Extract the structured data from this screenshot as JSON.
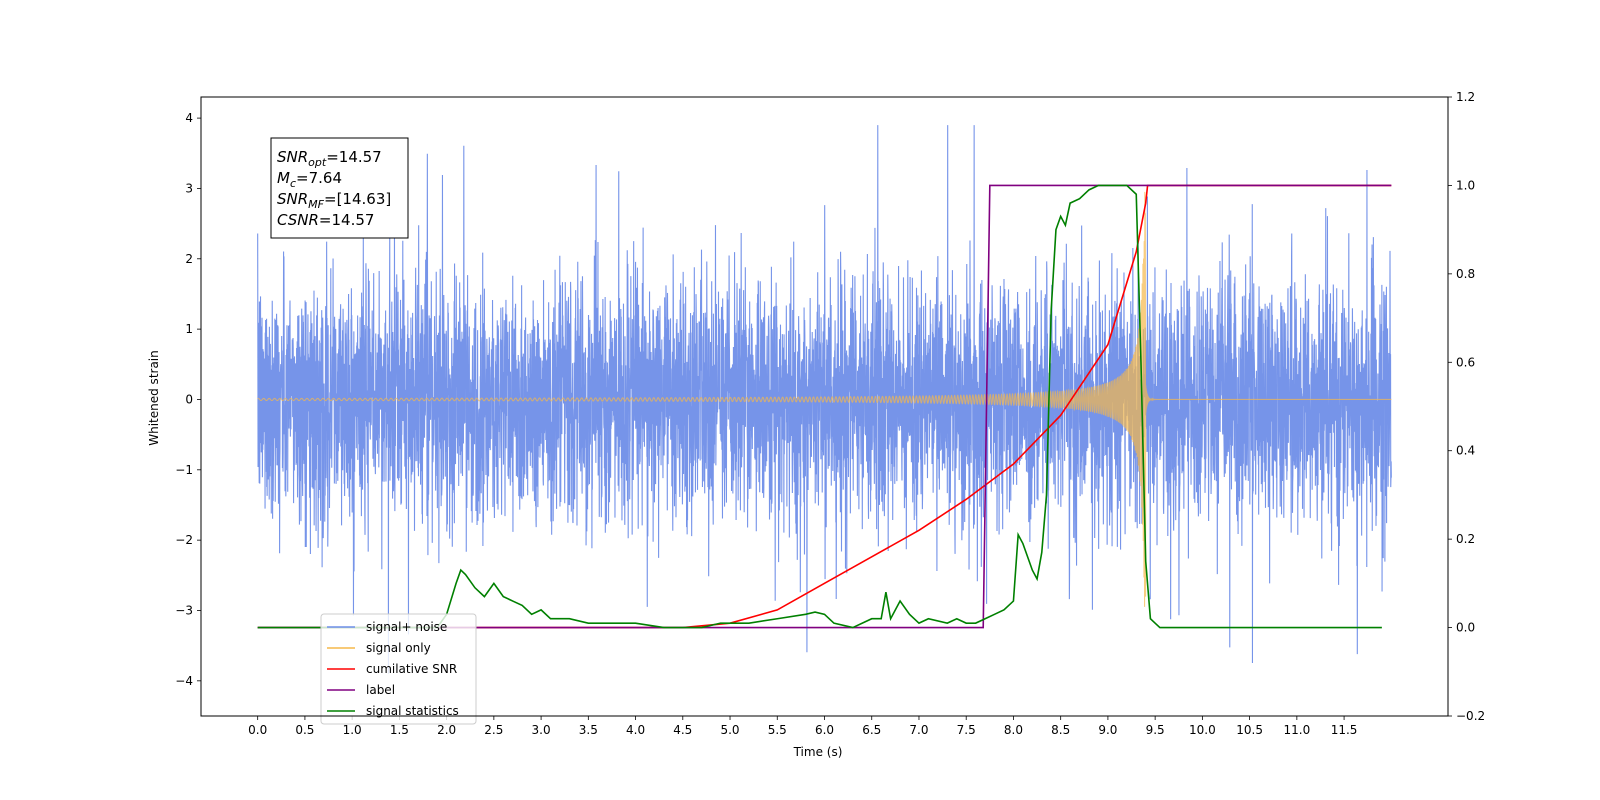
{
  "chart_data": {
    "type": "line",
    "title": "",
    "xlabel": "Time (s)",
    "ylabel": "Whitened strain",
    "y2label": "",
    "xlim": [
      -0.6,
      12.6
    ],
    "ylim": [
      -4.5,
      4.3
    ],
    "y2lim": [
      -0.2,
      1.2
    ],
    "x_ticks": [
      "0.0",
      "0.5",
      "1.0",
      "1.5",
      "2.0",
      "2.5",
      "3.0",
      "3.5",
      "4.0",
      "4.5",
      "5.0",
      "5.5",
      "6.0",
      "6.5",
      "7.0",
      "7.5",
      "8.0",
      "8.5",
      "9.0",
      "9.5",
      "10.0",
      "10.5",
      "11.0",
      "11.5"
    ],
    "y_ticks": [
      "4",
      "3",
      "2",
      "1",
      "0",
      "−1",
      "−2",
      "−3",
      "−4"
    ],
    "y2_ticks": [
      "1.2",
      "1.0",
      "0.8",
      "0.6",
      "0.4",
      "0.2",
      "0.0",
      "−0.2"
    ],
    "grid": false,
    "legend_position": "lower-left",
    "info_box": {
      "snr_opt": {
        "base": "SNR",
        "sub": "opt",
        "value": "=14.57"
      },
      "mc": {
        "base": "M",
        "sub": "c",
        "value": "=7.64"
      },
      "snr_mf": {
        "base": "SNR",
        "sub": "MF",
        "value": "=[14.63]"
      },
      "csnr": {
        "base": "CSNR",
        "sub": "",
        "value": "=14.57"
      }
    },
    "series": [
      {
        "name": "signal+ noise",
        "color": "#6f8ee8",
        "axis": "left",
        "kind": "noise",
        "x_range": [
          0.0,
          12.0
        ],
        "amplitude_std": 1.0,
        "peak": 3.9
      },
      {
        "name": "signal only",
        "color": "#f5b84a",
        "axis": "left",
        "kind": "chirp",
        "x_range": [
          0.0,
          12.0
        ],
        "merger_time": 9.4,
        "peak_amplitude": 3.0
      },
      {
        "name": "cumilative SNR",
        "color": "#ff0000",
        "axis": "right",
        "x": [
          0.0,
          4.5,
          5.0,
          5.5,
          6.0,
          6.5,
          7.0,
          7.5,
          8.0,
          8.5,
          9.0,
          9.3,
          9.4,
          9.42,
          12.0
        ],
        "values": [
          0.0,
          0.0,
          0.01,
          0.04,
          0.1,
          0.16,
          0.22,
          0.29,
          0.37,
          0.48,
          0.64,
          0.85,
          0.96,
          1.0,
          1.0
        ]
      },
      {
        "name": "label",
        "color": "#800080",
        "axis": "right",
        "x": [
          0.0,
          7.68,
          7.75,
          9.45,
          12.0
        ],
        "values": [
          0.0,
          0.0,
          1.0,
          1.0,
          1.0
        ]
      },
      {
        "name": "signal statistics",
        "color": "#008000",
        "axis": "right",
        "x": [
          0.0,
          1.9,
          2.0,
          2.1,
          2.15,
          2.2,
          2.3,
          2.4,
          2.5,
          2.6,
          2.7,
          2.8,
          2.9,
          3.0,
          3.1,
          3.3,
          3.5,
          3.8,
          4.0,
          4.3,
          4.5,
          4.7,
          4.9,
          5.2,
          5.5,
          5.8,
          5.9,
          6.0,
          6.1,
          6.3,
          6.5,
          6.6,
          6.65,
          6.7,
          6.8,
          6.9,
          7.0,
          7.1,
          7.3,
          7.4,
          7.5,
          7.6,
          7.7,
          7.8,
          7.9,
          8.0,
          8.05,
          8.1,
          8.2,
          8.25,
          8.3,
          8.35,
          8.4,
          8.45,
          8.5,
          8.55,
          8.6,
          8.7,
          8.8,
          8.9,
          9.0,
          9.2,
          9.3,
          9.35,
          9.4,
          9.45,
          9.5,
          9.55,
          11.9
        ],
        "values": [
          0.0,
          0.0,
          0.03,
          0.1,
          0.13,
          0.12,
          0.09,
          0.07,
          0.1,
          0.07,
          0.06,
          0.05,
          0.03,
          0.04,
          0.02,
          0.02,
          0.01,
          0.01,
          0.01,
          0.0,
          0.0,
          0.0,
          0.01,
          0.01,
          0.02,
          0.03,
          0.035,
          0.03,
          0.01,
          0.0,
          0.02,
          0.02,
          0.08,
          0.02,
          0.06,
          0.03,
          0.01,
          0.02,
          0.01,
          0.02,
          0.01,
          0.01,
          0.02,
          0.03,
          0.04,
          0.06,
          0.21,
          0.19,
          0.13,
          0.11,
          0.17,
          0.3,
          0.72,
          0.9,
          0.93,
          0.91,
          0.96,
          0.97,
          0.99,
          1.0,
          1.0,
          1.0,
          0.98,
          0.6,
          0.15,
          0.02,
          0.01,
          0.0,
          0.0
        ]
      }
    ]
  }
}
